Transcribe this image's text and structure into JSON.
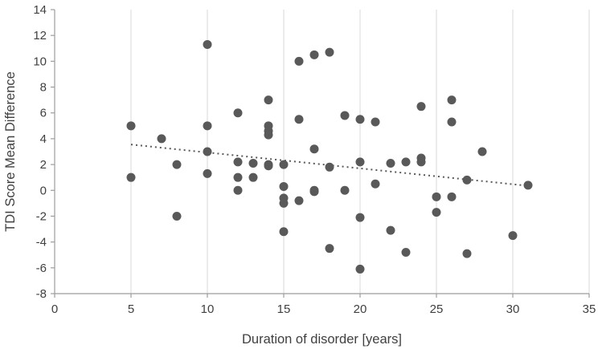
{
  "chart_data": {
    "type": "scatter",
    "title": "",
    "xlabel": "Duration of disorder [years]",
    "ylabel": "TDI Score Mean Difference",
    "xlim": [
      0,
      35
    ],
    "ylim": [
      -8,
      14
    ],
    "xticks": [
      0,
      5,
      10,
      15,
      20,
      25,
      30,
      35
    ],
    "yticks": [
      -8,
      -6,
      -4,
      -2,
      0,
      2,
      4,
      6,
      8,
      10,
      12,
      14
    ],
    "grid": "vertical-only",
    "legend": "none",
    "point_color": "#595959",
    "gridline_color": "#d9d9d9",
    "axis_color": "#9c9c9c",
    "points": [
      [
        5,
        5
      ],
      [
        5,
        1
      ],
      [
        7,
        4
      ],
      [
        8,
        2
      ],
      [
        8,
        -2
      ],
      [
        10,
        11.3
      ],
      [
        10,
        5
      ],
      [
        10,
        3
      ],
      [
        10,
        1.3
      ],
      [
        12,
        6
      ],
      [
        12,
        2.2
      ],
      [
        12,
        1
      ],
      [
        12,
        0
      ],
      [
        13,
        2.1
      ],
      [
        13,
        1
      ],
      [
        14,
        7
      ],
      [
        14,
        5
      ],
      [
        14,
        4.6
      ],
      [
        14,
        4.3
      ],
      [
        14,
        2
      ],
      [
        14,
        1.9
      ],
      [
        15,
        2
      ],
      [
        15,
        0.3
      ],
      [
        15,
        -0.6
      ],
      [
        15,
        -1
      ],
      [
        15,
        -3.2
      ],
      [
        16,
        10
      ],
      [
        16,
        5.5
      ],
      [
        16,
        -0.8
      ],
      [
        17,
        10.5
      ],
      [
        17,
        3.2
      ],
      [
        17,
        0
      ],
      [
        17,
        -0.1
      ],
      [
        18,
        10.7
      ],
      [
        18,
        1.8
      ],
      [
        18,
        -4.5
      ],
      [
        19,
        5.8
      ],
      [
        19,
        0
      ],
      [
        20,
        5.5
      ],
      [
        20,
        2.2
      ],
      [
        20,
        -2.1
      ],
      [
        20,
        -6.1
      ],
      [
        21,
        5.3
      ],
      [
        21,
        0.5
      ],
      [
        22,
        2.1
      ],
      [
        22,
        -3.1
      ],
      [
        23,
        2.2
      ],
      [
        23,
        -4.8
      ],
      [
        24,
        6.5
      ],
      [
        24,
        2.5
      ],
      [
        24,
        2.2
      ],
      [
        25,
        -0.5
      ],
      [
        25,
        -1.7
      ],
      [
        26,
        7
      ],
      [
        26,
        5.3
      ],
      [
        26,
        -0.5
      ],
      [
        27,
        0.8
      ],
      [
        27,
        -4.9
      ],
      [
        28,
        3
      ],
      [
        30,
        -3.5
      ],
      [
        31,
        0.4
      ]
    ],
    "trendline": {
      "style": "dotted",
      "color": "#595959",
      "x1": 5,
      "y1": 3.55,
      "x2": 31,
      "y2": 0.35
    }
  }
}
